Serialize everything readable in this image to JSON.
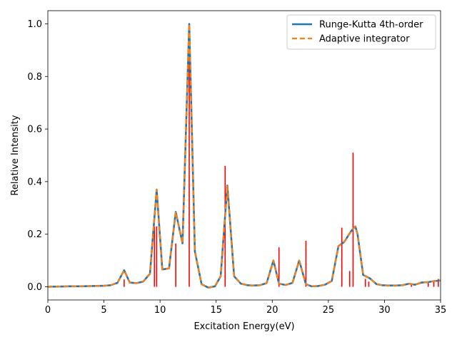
{
  "chart_data": {
    "type": "line",
    "xlabel": "Excitation Energy(eV)",
    "ylabel": "Relative Intensity",
    "xlim": [
      0,
      35
    ],
    "ylim": [
      -0.05,
      1.05
    ],
    "xticks": [
      0,
      5,
      10,
      15,
      20,
      25,
      30,
      35
    ],
    "yticks": [
      0.0,
      0.2,
      0.4,
      0.6,
      0.8,
      1.0
    ],
    "xtick_labels": [
      "0",
      "5",
      "10",
      "15",
      "20",
      "25",
      "30",
      "35"
    ],
    "ytick_labels": [
      "0.0",
      "0.2",
      "0.4",
      "0.6",
      "0.8",
      "1.0"
    ],
    "grid": false,
    "legend_position": "top-right",
    "colors": {
      "rk4": "#1f77b4",
      "adaptive": "#ff7f0e",
      "sticks": "#ff0000"
    },
    "series": [
      {
        "name": "Runge-Kutta 4th-order",
        "style": "solid",
        "x": [
          0,
          1,
          2,
          3,
          4,
          5,
          5.6,
          6.2,
          6.8,
          7.3,
          7.9,
          8.5,
          9.1,
          9.7,
          10.2,
          10.8,
          11.4,
          12.0,
          12.6,
          13.1,
          13.7,
          14.3,
          14.9,
          15.4,
          16.0,
          16.6,
          17.2,
          17.8,
          18.3,
          18.9,
          19.5,
          20.1,
          20.6,
          21.2,
          21.8,
          22.4,
          23.0,
          23.5,
          24.1,
          24.7,
          25.3,
          25.9,
          26.4,
          27.0,
          27.4,
          27.6,
          28.1,
          28.7,
          29.3,
          29.8,
          30.4,
          31.0,
          31.6,
          32.2,
          32.7,
          33.3,
          33.9,
          34.5,
          35.0
        ],
        "values": [
          0.0,
          0.001,
          0.002,
          0.002,
          0.003,
          0.004,
          0.006,
          0.015,
          0.063,
          0.016,
          0.014,
          0.02,
          0.05,
          0.37,
          0.066,
          0.07,
          0.285,
          0.165,
          1.0,
          0.135,
          0.01,
          -0.003,
          0.002,
          0.04,
          0.385,
          0.04,
          0.012,
          0.006,
          0.005,
          0.006,
          0.014,
          0.1,
          0.012,
          0.007,
          0.015,
          0.1,
          0.01,
          0.002,
          0.003,
          0.008,
          0.022,
          0.155,
          0.17,
          0.21,
          0.23,
          0.2,
          0.045,
          0.032,
          0.01,
          0.006,
          0.005,
          0.005,
          0.006,
          0.012,
          0.008,
          0.016,
          0.018,
          0.022,
          0.024
        ]
      },
      {
        "name": "Adaptive integrator",
        "style": "dashed",
        "x": [
          0,
          1,
          2,
          3,
          4,
          5,
          5.6,
          6.2,
          6.8,
          7.3,
          7.9,
          8.5,
          9.1,
          9.7,
          10.2,
          10.8,
          11.4,
          12.0,
          12.6,
          13.1,
          13.7,
          14.3,
          14.9,
          15.4,
          16.0,
          16.6,
          17.2,
          17.8,
          18.3,
          18.9,
          19.5,
          20.1,
          20.6,
          21.2,
          21.8,
          22.4,
          23.0,
          23.5,
          24.1,
          24.7,
          25.3,
          25.9,
          26.4,
          27.0,
          27.4,
          27.6,
          28.1,
          28.7,
          29.3,
          29.8,
          30.4,
          31.0,
          31.6,
          32.2,
          32.7,
          33.3,
          33.9,
          34.5,
          35.0
        ],
        "values": [
          0.0,
          0.001,
          0.002,
          0.002,
          0.003,
          0.004,
          0.006,
          0.015,
          0.063,
          0.016,
          0.014,
          0.02,
          0.05,
          0.37,
          0.066,
          0.07,
          0.285,
          0.165,
          1.0,
          0.135,
          0.01,
          -0.003,
          0.002,
          0.04,
          0.385,
          0.04,
          0.012,
          0.006,
          0.005,
          0.006,
          0.014,
          0.1,
          0.012,
          0.007,
          0.015,
          0.1,
          0.01,
          0.002,
          0.003,
          0.008,
          0.022,
          0.155,
          0.17,
          0.21,
          0.23,
          0.2,
          0.045,
          0.032,
          0.01,
          0.006,
          0.005,
          0.005,
          0.006,
          0.012,
          0.008,
          0.016,
          0.018,
          0.022,
          0.024
        ]
      }
    ],
    "sticks": {
      "x": [
        6.8,
        9.5,
        9.7,
        11.4,
        12.6,
        15.8,
        20.6,
        23.0,
        26.2,
        26.9,
        27.2,
        28.3,
        28.6,
        32.4,
        33.9,
        34.4,
        34.8
      ],
      "values": [
        0.028,
        0.23,
        0.23,
        0.165,
        1.0,
        0.46,
        0.15,
        0.175,
        0.225,
        0.06,
        0.51,
        0.03,
        0.02,
        0.01,
        0.02,
        0.02,
        0.03
      ]
    }
  }
}
